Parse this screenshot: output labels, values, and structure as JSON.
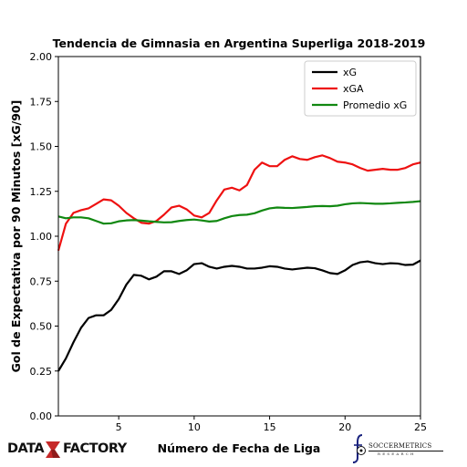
{
  "chart_data": {
    "type": "line",
    "title": "Tendencia de Gimnasia en Argentina Superliga 2018-2019",
    "xlabel": "Número de Fecha de Liga",
    "ylabel": "Gol de Expectativa por 90 Minutos [xG/90]",
    "xlim": [
      1,
      25
    ],
    "ylim": [
      0,
      2
    ],
    "xticks": [
      5,
      10,
      15,
      20,
      25
    ],
    "xtick_labels": [
      "5",
      "10",
      "15",
      "20",
      "25"
    ],
    "yticks": [
      0,
      0.25,
      0.5,
      0.75,
      1.0,
      1.25,
      1.5,
      1.75,
      2.0
    ],
    "ytick_labels": [
      "0.00",
      "0.25",
      "0.50",
      "0.75",
      "1.00",
      "1.25",
      "1.50",
      "1.75",
      "2.00"
    ],
    "grid": false,
    "legend_position": "top-right",
    "series": [
      {
        "name": "xG",
        "color": "#000000",
        "points": [
          [
            1,
            0.25
          ],
          [
            1.5,
            0.32
          ],
          [
            2,
            0.41
          ],
          [
            2.5,
            0.49
          ],
          [
            3,
            0.545
          ],
          [
            3.5,
            0.56
          ],
          [
            4,
            0.56
          ],
          [
            4.5,
            0.59
          ],
          [
            5,
            0.65
          ],
          [
            5.5,
            0.73
          ],
          [
            6,
            0.785
          ],
          [
            6.5,
            0.78
          ],
          [
            7,
            0.76
          ],
          [
            7.5,
            0.775
          ],
          [
            8,
            0.805
          ],
          [
            8.5,
            0.805
          ],
          [
            9,
            0.79
          ],
          [
            9.5,
            0.81
          ],
          [
            10,
            0.845
          ],
          [
            10.5,
            0.85
          ],
          [
            11,
            0.83
          ],
          [
            11.5,
            0.82
          ],
          [
            12,
            0.83
          ],
          [
            12.5,
            0.835
          ],
          [
            13,
            0.83
          ],
          [
            13.5,
            0.82
          ],
          [
            14,
            0.82
          ],
          [
            14.5,
            0.825
          ],
          [
            15,
            0.833
          ],
          [
            15.5,
            0.83
          ],
          [
            16,
            0.82
          ],
          [
            16.5,
            0.815
          ],
          [
            17,
            0.82
          ],
          [
            17.5,
            0.825
          ],
          [
            18,
            0.822
          ],
          [
            18.5,
            0.81
          ],
          [
            19,
            0.795
          ],
          [
            19.5,
            0.79
          ],
          [
            20,
            0.81
          ],
          [
            20.5,
            0.84
          ],
          [
            21,
            0.855
          ],
          [
            21.5,
            0.86
          ],
          [
            22,
            0.85
          ],
          [
            22.5,
            0.845
          ],
          [
            23,
            0.85
          ],
          [
            23.5,
            0.848
          ],
          [
            24,
            0.84
          ],
          [
            24.5,
            0.842
          ],
          [
            25,
            0.865
          ]
        ]
      },
      {
        "name": "xGA",
        "color": "#ee1111",
        "points": [
          [
            1,
            0.92
          ],
          [
            1.5,
            1.07
          ],
          [
            2,
            1.13
          ],
          [
            2.5,
            1.145
          ],
          [
            3,
            1.155
          ],
          [
            3.5,
            1.18
          ],
          [
            4,
            1.205
          ],
          [
            4.5,
            1.2
          ],
          [
            5,
            1.17
          ],
          [
            5.5,
            1.13
          ],
          [
            6,
            1.1
          ],
          [
            6.5,
            1.075
          ],
          [
            7,
            1.07
          ],
          [
            7.5,
            1.085
          ],
          [
            8,
            1.12
          ],
          [
            8.5,
            1.16
          ],
          [
            9,
            1.17
          ],
          [
            9.5,
            1.15
          ],
          [
            10,
            1.115
          ],
          [
            10.5,
            1.105
          ],
          [
            11,
            1.13
          ],
          [
            11.5,
            1.2
          ],
          [
            12,
            1.26
          ],
          [
            12.5,
            1.27
          ],
          [
            13,
            1.255
          ],
          [
            13.5,
            1.285
          ],
          [
            14,
            1.37
          ],
          [
            14.5,
            1.41
          ],
          [
            15,
            1.39
          ],
          [
            15.5,
            1.39
          ],
          [
            16,
            1.425
          ],
          [
            16.5,
            1.445
          ],
          [
            17,
            1.43
          ],
          [
            17.5,
            1.425
          ],
          [
            18,
            1.44
          ],
          [
            18.5,
            1.45
          ],
          [
            19,
            1.435
          ],
          [
            19.5,
            1.415
          ],
          [
            20,
            1.41
          ],
          [
            20.5,
            1.4
          ],
          [
            21,
            1.38
          ],
          [
            21.5,
            1.365
          ],
          [
            22,
            1.37
          ],
          [
            22.5,
            1.375
          ],
          [
            23,
            1.37
          ],
          [
            23.5,
            1.37
          ],
          [
            24,
            1.38
          ],
          [
            24.5,
            1.4
          ],
          [
            25,
            1.41
          ]
        ]
      },
      {
        "name": "Promedio xG",
        "color": "#118811",
        "points": [
          [
            1,
            1.11
          ],
          [
            1.5,
            1.1
          ],
          [
            2,
            1.105
          ],
          [
            2.5,
            1.105
          ],
          [
            3,
            1.1
          ],
          [
            3.5,
            1.085
          ],
          [
            4,
            1.07
          ],
          [
            4.5,
            1.072
          ],
          [
            5,
            1.083
          ],
          [
            5.5,
            1.088
          ],
          [
            6,
            1.09
          ],
          [
            6.5,
            1.087
          ],
          [
            7,
            1.083
          ],
          [
            7.5,
            1.08
          ],
          [
            8,
            1.077
          ],
          [
            8.5,
            1.078
          ],
          [
            9,
            1.085
          ],
          [
            9.5,
            1.09
          ],
          [
            10,
            1.093
          ],
          [
            10.5,
            1.088
          ],
          [
            11,
            1.082
          ],
          [
            11.5,
            1.085
          ],
          [
            12,
            1.1
          ],
          [
            12.5,
            1.112
          ],
          [
            13,
            1.118
          ],
          [
            13.5,
            1.12
          ],
          [
            14,
            1.128
          ],
          [
            14.5,
            1.143
          ],
          [
            15,
            1.155
          ],
          [
            15.5,
            1.16
          ],
          [
            16,
            1.158
          ],
          [
            16.5,
            1.157
          ],
          [
            17,
            1.16
          ],
          [
            17.5,
            1.163
          ],
          [
            18,
            1.167
          ],
          [
            18.5,
            1.168
          ],
          [
            19,
            1.167
          ],
          [
            19.5,
            1.17
          ],
          [
            20,
            1.178
          ],
          [
            20.5,
            1.183
          ],
          [
            21,
            1.185
          ],
          [
            21.5,
            1.183
          ],
          [
            22,
            1.181
          ],
          [
            22.5,
            1.181
          ],
          [
            23,
            1.183
          ],
          [
            23.5,
            1.186
          ],
          [
            24,
            1.188
          ],
          [
            24.5,
            1.191
          ],
          [
            25,
            1.195
          ]
        ]
      }
    ]
  },
  "logos": {
    "left": {
      "part1": "DATA",
      "part2": "FACTORY",
      "mark_color": "#c62828"
    },
    "right": {
      "name": "SOCCERMETRICS",
      "sub": "RESEARCH"
    }
  }
}
